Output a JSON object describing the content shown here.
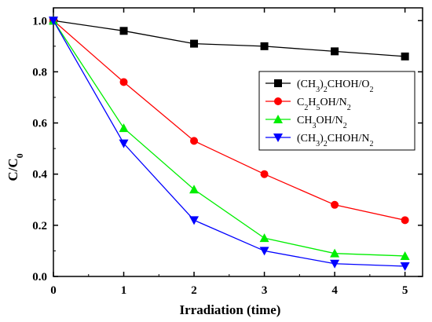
{
  "chart_data": {
    "type": "line",
    "xlabel": "Irradiation (time)",
    "ylabel": "C/C",
    "ylabel_sub": "0",
    "xlim": [
      0,
      5.25
    ],
    "ylim": [
      0,
      1.05
    ],
    "xticks": [
      0,
      1,
      2,
      3,
      4,
      5
    ],
    "yticks": [
      0.0,
      0.2,
      0.4,
      0.6,
      0.8,
      1.0
    ],
    "ytick_labels": [
      "0.0",
      "0.2",
      "0.4",
      "0.6",
      "0.8",
      "1.0"
    ],
    "grid": false,
    "legend_position": "upper-right",
    "x": [
      0,
      1,
      2,
      3,
      4,
      5
    ],
    "series": [
      {
        "name": "(CH3)2CHOH/O2",
        "label_parts": [
          [
            "(CH",
            false
          ],
          [
            "3",
            true
          ],
          [
            ")",
            false
          ],
          [
            "2",
            true
          ],
          [
            "CHOH/O",
            false
          ],
          [
            "2",
            true
          ]
        ],
        "color": "#000000",
        "marker": "square",
        "values": [
          1.0,
          0.96,
          0.91,
          0.9,
          0.88,
          0.86
        ]
      },
      {
        "name": "C2H5OH/N2",
        "label_parts": [
          [
            "C",
            false
          ],
          [
            "2",
            true
          ],
          [
            "H",
            false
          ],
          [
            "5",
            true
          ],
          [
            "OH/N",
            false
          ],
          [
            "2",
            true
          ]
        ],
        "color": "#ff0000",
        "marker": "circle",
        "values": [
          1.0,
          0.76,
          0.53,
          0.4,
          0.28,
          0.22
        ]
      },
      {
        "name": "CH3OH/N2",
        "label_parts": [
          [
            "CH",
            false
          ],
          [
            "3",
            true
          ],
          [
            "OH/N",
            false
          ],
          [
            "2",
            true
          ]
        ],
        "color": "#00ee00",
        "marker": "triangle-up",
        "values": [
          1.0,
          0.58,
          0.34,
          0.15,
          0.09,
          0.08
        ]
      },
      {
        "name": "(CH3)2CHOH/N2",
        "label_parts": [
          [
            "(CH",
            false
          ],
          [
            "3",
            true
          ],
          [
            ")",
            false
          ],
          [
            "2",
            true
          ],
          [
            "CHOH/N",
            false
          ],
          [
            "2",
            true
          ]
        ],
        "color": "#0000ff",
        "marker": "triangle-down",
        "values": [
          1.0,
          0.52,
          0.22,
          0.1,
          0.05,
          0.04
        ]
      }
    ]
  }
}
